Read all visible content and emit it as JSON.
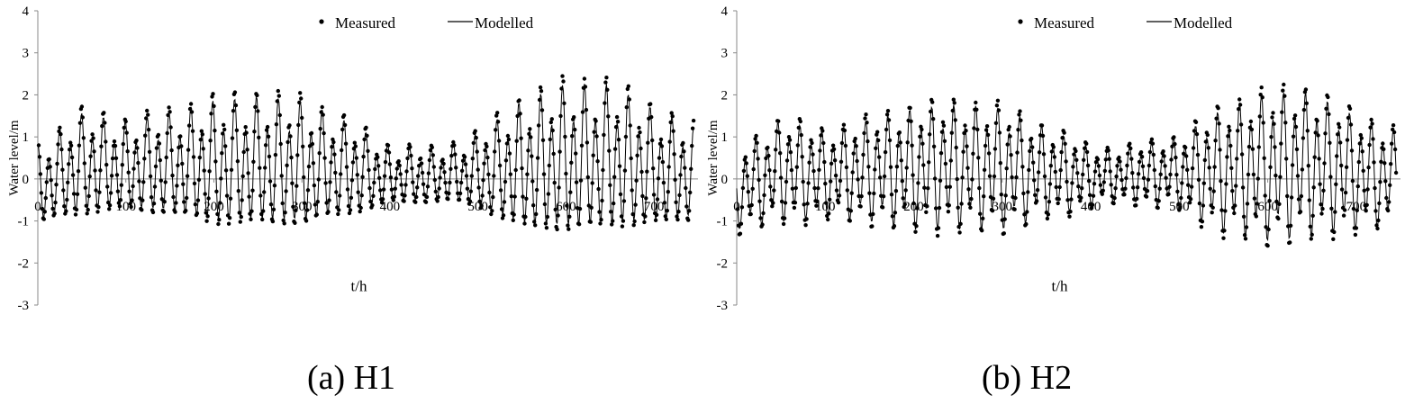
{
  "chart_data": [
    {
      "type": "line",
      "caption": "(a) H1",
      "xlabel": "t/h",
      "ylabel": "Water level/m",
      "xlim": [
        0,
        750
      ],
      "ylim": [
        -3,
        4
      ],
      "x_ticks": [
        "0",
        "100",
        "200",
        "300",
        "400",
        "500",
        "600",
        "700"
      ],
      "y_ticks": [
        "4",
        "3",
        "2",
        "1",
        "0",
        "-1",
        "-2",
        "-3"
      ],
      "legend_position": "top-center",
      "series": [
        {
          "name": "Measured",
          "style": "markers",
          "color": "#000000",
          "description_samples": {
            "x": [
              0,
              12,
              25,
              37,
              50,
              100,
              150,
              200,
              250,
              300,
              350,
              400,
              450,
              500,
              550,
              600,
              650,
              700,
              737
            ],
            "y": [
              0.8,
              1.8,
              1.65,
              1.45,
              1.3,
              1.45,
              1.75,
              2.0,
              2.05,
              1.9,
              1.45,
              0.7,
              0.8,
              1.2,
              2.0,
              2.3,
              2.35,
              1.9,
              1.3
            ]
          }
        },
        {
          "name": "Modelled",
          "style": "line",
          "color": "#000000"
        }
      ],
      "envelope": {
        "x": [
          0,
          50,
          100,
          150,
          200,
          250,
          300,
          350,
          400,
          450,
          500,
          550,
          600,
          650,
          700,
          750
        ],
        "high": [
          0.8,
          1.6,
          1.4,
          1.6,
          1.9,
          2.0,
          1.9,
          1.4,
          0.8,
          0.7,
          1.1,
          1.9,
          2.3,
          2.3,
          1.7,
          1.2
        ],
        "low": [
          -1.2,
          -1.0,
          -0.9,
          -1.0,
          -1.3,
          -1.3,
          -1.3,
          -1.0,
          -0.7,
          -0.6,
          -0.8,
          -1.4,
          -1.5,
          -1.4,
          -1.3,
          -1.1
        ]
      }
    },
    {
      "type": "line",
      "caption": "(b) H2",
      "xlabel": "t/h",
      "ylabel": "Water level/m",
      "xlim": [
        0,
        750
      ],
      "ylim": [
        -3,
        4
      ],
      "x_ticks": [
        "0",
        "100",
        "200",
        "300",
        "400",
        "500",
        "600",
        "700"
      ],
      "y_ticks": [
        "4",
        "3",
        "2",
        "1",
        "0",
        "-1",
        "-2",
        "-3"
      ],
      "legend_position": "top-center",
      "series": [
        {
          "name": "Measured",
          "style": "markers",
          "color": "#000000"
        },
        {
          "name": "Modelled",
          "style": "line",
          "color": "#000000"
        }
      ],
      "envelope": {
        "x": [
          0,
          50,
          100,
          150,
          200,
          250,
          300,
          350,
          400,
          450,
          500,
          550,
          600,
          650,
          700,
          750
        ],
        "high": [
          0.7,
          1.5,
          1.2,
          1.5,
          1.8,
          1.9,
          1.8,
          1.3,
          0.8,
          0.8,
          1.1,
          1.8,
          2.2,
          2.2,
          1.6,
          1.2
        ],
        "low": [
          -1.3,
          -1.1,
          -1.0,
          -1.1,
          -1.3,
          -1.3,
          -1.3,
          -1.0,
          -0.7,
          -0.6,
          -0.8,
          -1.4,
          -1.6,
          -1.5,
          -1.3,
          -1.2
        ]
      }
    }
  ]
}
